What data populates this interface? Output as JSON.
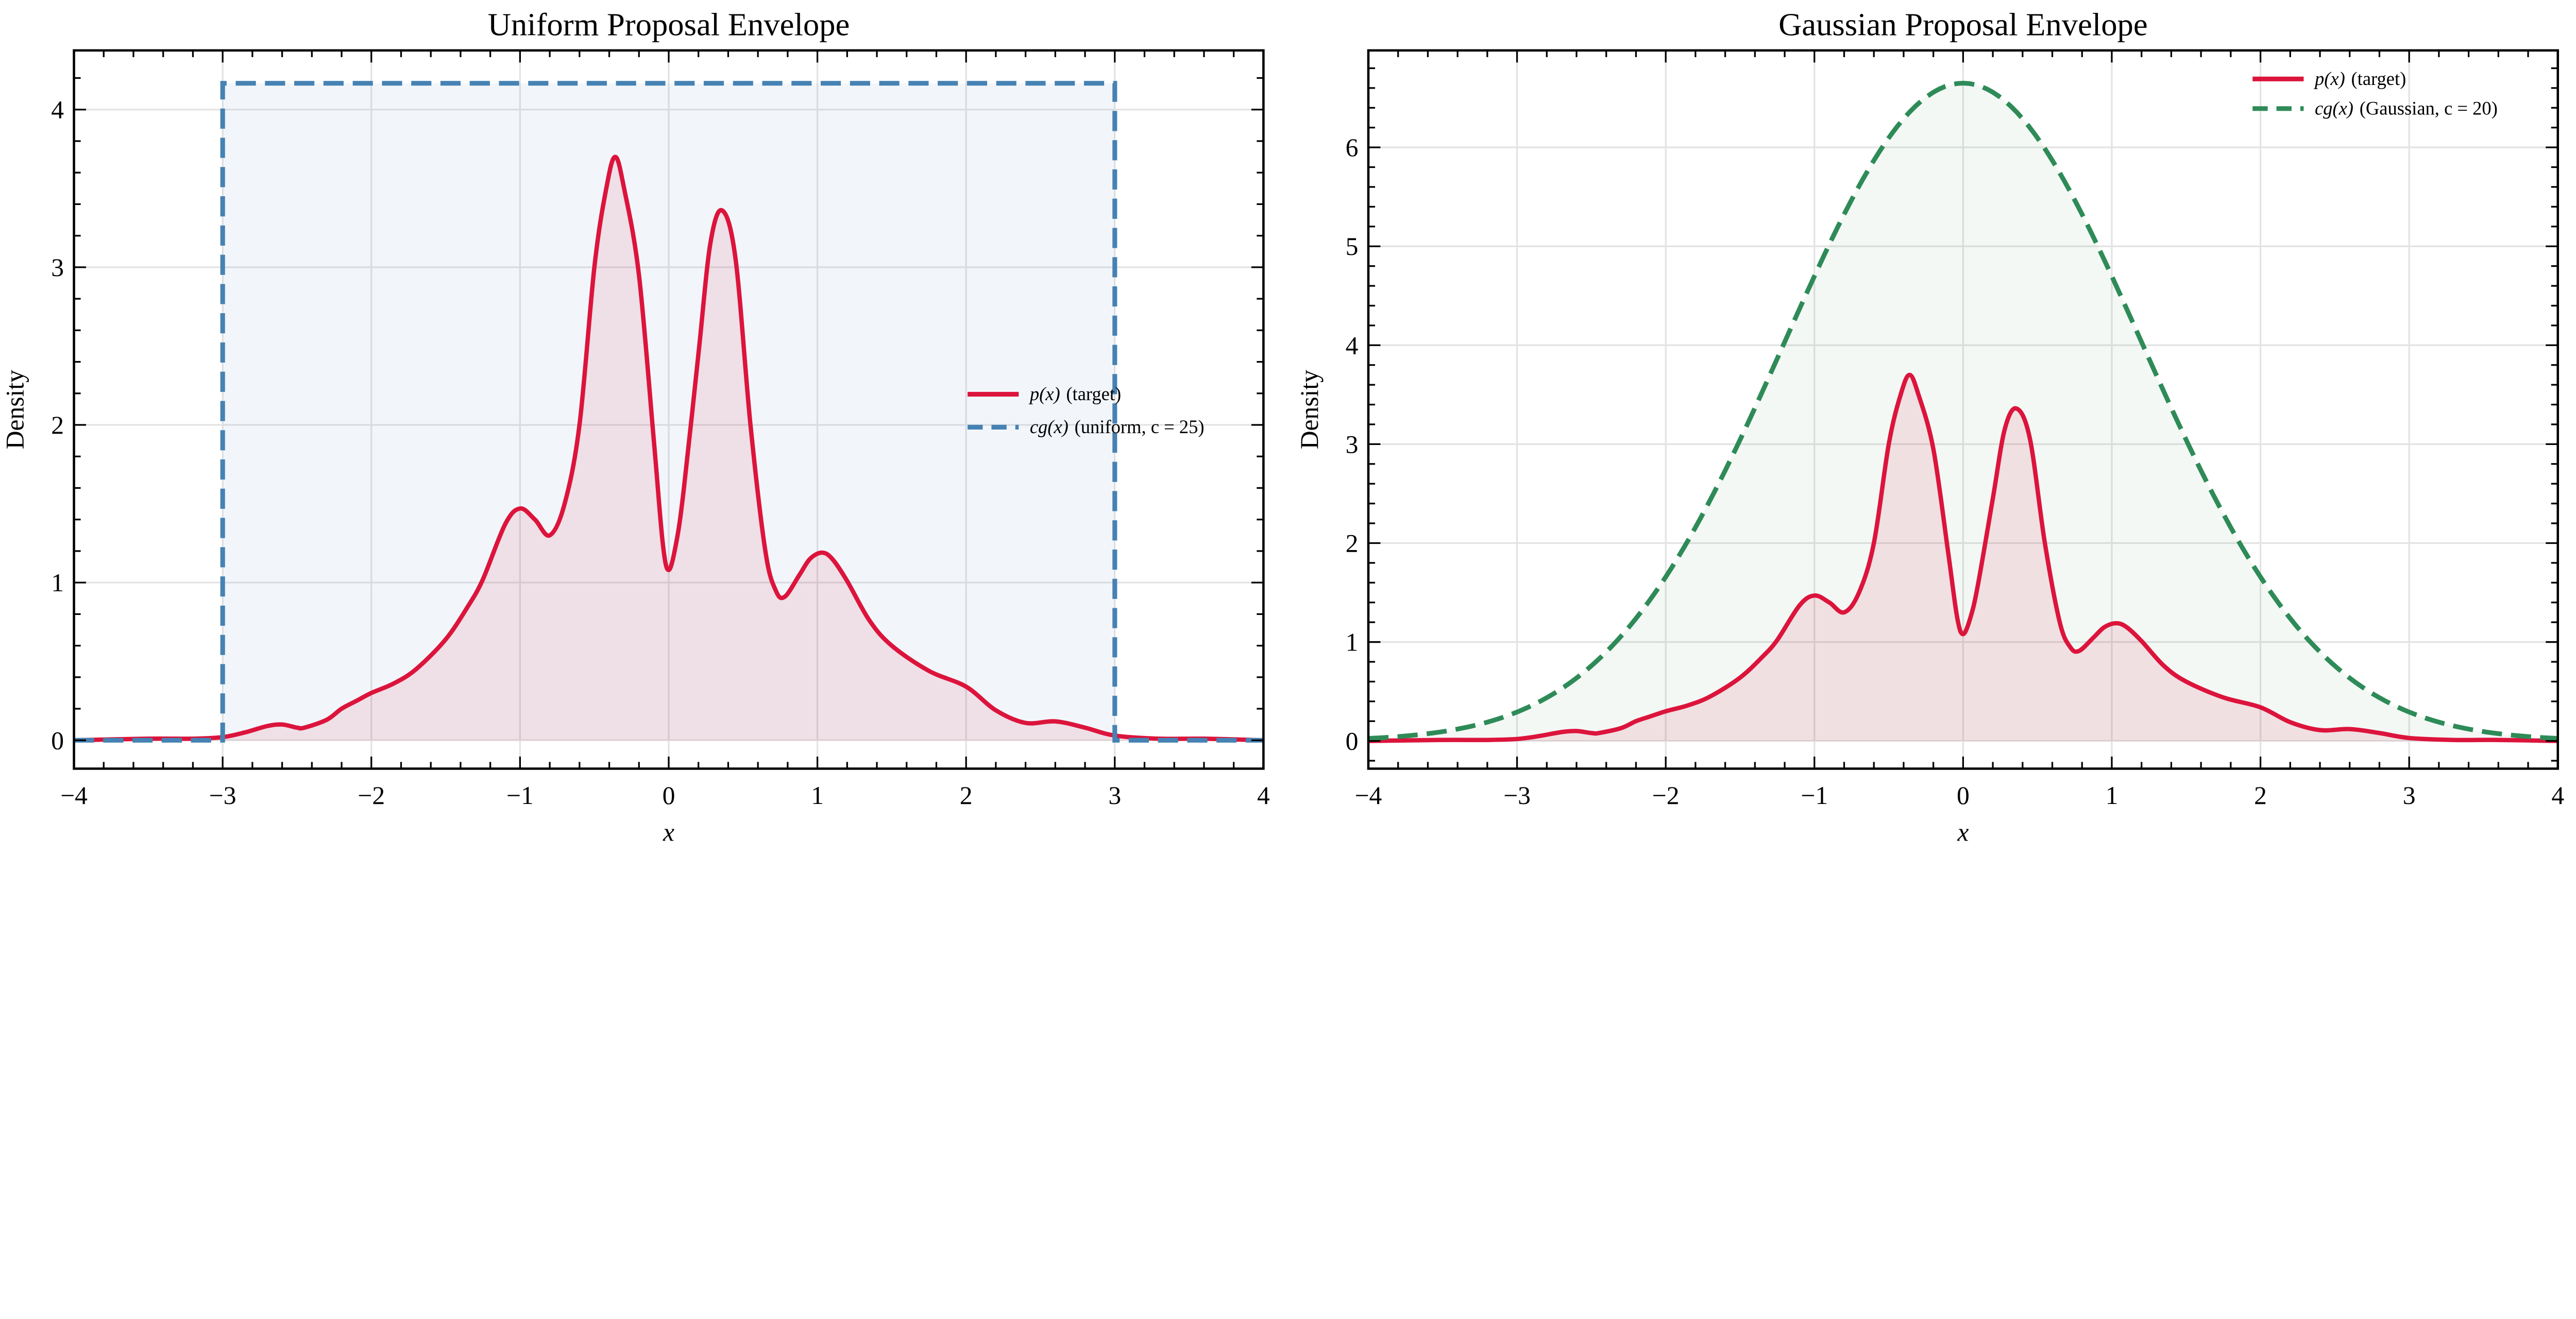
{
  "chart_data": [
    {
      "type": "line",
      "title": "Uniform Proposal Envelope",
      "xlabel": "x",
      "ylabel": "Density",
      "xlim": [
        -4,
        4
      ],
      "ylim": [
        -0.18,
        4.375
      ],
      "grid": true,
      "legend_position": "center-right",
      "xticks": [
        -4,
        -3,
        -2,
        -1,
        0,
        1,
        2,
        3,
        4
      ],
      "xtick_labels": [
        "−4",
        "−3",
        "−2",
        "−1",
        "0",
        "1",
        "2",
        "3",
        "4"
      ],
      "yticks": [
        0,
        1,
        2,
        3,
        4
      ],
      "ytick_labels": [
        "0",
        "1",
        "2",
        "3",
        "4"
      ],
      "target": {
        "name": "p(x) (target)",
        "color": "#DC143C",
        "points": [
          [
            -4,
            0.0
          ],
          [
            -3.5,
            0.01
          ],
          [
            -3.2,
            0.01
          ],
          [
            -3.0,
            0.02
          ],
          [
            -2.85,
            0.05
          ],
          [
            -2.7,
            0.09
          ],
          [
            -2.6,
            0.1
          ],
          [
            -2.5,
            0.08
          ],
          [
            -2.45,
            0.08
          ],
          [
            -2.3,
            0.13
          ],
          [
            -2.2,
            0.2
          ],
          [
            -2.1,
            0.25
          ],
          [
            -2.0,
            0.3
          ],
          [
            -1.85,
            0.36
          ],
          [
            -1.7,
            0.45
          ],
          [
            -1.5,
            0.64
          ],
          [
            -1.35,
            0.85
          ],
          [
            -1.25,
            1.02
          ],
          [
            -1.1,
            1.37
          ],
          [
            -1.0,
            1.47
          ],
          [
            -0.9,
            1.4
          ],
          [
            -0.8,
            1.3
          ],
          [
            -0.7,
            1.5
          ],
          [
            -0.6,
            2.0
          ],
          [
            -0.5,
            3.0
          ],
          [
            -0.42,
            3.5
          ],
          [
            -0.36,
            3.7
          ],
          [
            -0.3,
            3.5
          ],
          [
            -0.2,
            2.95
          ],
          [
            -0.1,
            1.9
          ],
          [
            -0.04,
            1.25
          ],
          [
            0,
            1.08
          ],
          [
            0.05,
            1.25
          ],
          [
            0.1,
            1.58
          ],
          [
            0.2,
            2.45
          ],
          [
            0.28,
            3.15
          ],
          [
            0.36,
            3.36
          ],
          [
            0.45,
            3.05
          ],
          [
            0.55,
            2.0
          ],
          [
            0.65,
            1.2
          ],
          [
            0.72,
            0.95
          ],
          [
            0.78,
            0.91
          ],
          [
            0.88,
            1.05
          ],
          [
            0.95,
            1.15
          ],
          [
            1.03,
            1.19
          ],
          [
            1.1,
            1.15
          ],
          [
            1.2,
            1.01
          ],
          [
            1.35,
            0.76
          ],
          [
            1.5,
            0.6
          ],
          [
            1.75,
            0.44
          ],
          [
            2.0,
            0.34
          ],
          [
            2.2,
            0.19
          ],
          [
            2.4,
            0.11
          ],
          [
            2.6,
            0.12
          ],
          [
            2.8,
            0.08
          ],
          [
            3.0,
            0.03
          ],
          [
            3.3,
            0.01
          ],
          [
            3.6,
            0.01
          ],
          [
            4,
            0.0
          ]
        ]
      },
      "envelope": {
        "kind": "uniform",
        "c": 25,
        "low": -3,
        "high": 3,
        "color": "#4682B4"
      },
      "legend": [
        {
          "math": "p(x)",
          "text": "(target)",
          "color": "#DC143C",
          "dashed": false
        },
        {
          "math": "cg(x)",
          "text": "(uniform, c = 25)",
          "color": "#4682B4",
          "dashed": true
        }
      ]
    },
    {
      "type": "line",
      "title": "Gaussian Proposal Envelope",
      "xlabel": "x",
      "ylabel": "Density",
      "xlim": [
        -4,
        4
      ],
      "ylim": [
        -0.28,
        6.98
      ],
      "grid": true,
      "legend_position": "top-right",
      "xticks": [
        -4,
        -3,
        -2,
        -1,
        0,
        1,
        2,
        3,
        4
      ],
      "xtick_labels": [
        "−4",
        "−3",
        "−2",
        "−1",
        "0",
        "1",
        "2",
        "3",
        "4"
      ],
      "yticks": [
        0,
        1,
        2,
        3,
        4,
        5,
        6
      ],
      "ytick_labels": [
        "0",
        "1",
        "2",
        "3",
        "4",
        "5",
        "6"
      ],
      "target": {
        "name": "p(x) (target)",
        "color": "#DC143C",
        "points": [
          [
            -4,
            0.0
          ],
          [
            -3.5,
            0.01
          ],
          [
            -3.2,
            0.01
          ],
          [
            -3.0,
            0.02
          ],
          [
            -2.85,
            0.05
          ],
          [
            -2.7,
            0.09
          ],
          [
            -2.6,
            0.1
          ],
          [
            -2.5,
            0.08
          ],
          [
            -2.45,
            0.08
          ],
          [
            -2.3,
            0.13
          ],
          [
            -2.2,
            0.2
          ],
          [
            -2.1,
            0.25
          ],
          [
            -2.0,
            0.3
          ],
          [
            -1.85,
            0.36
          ],
          [
            -1.7,
            0.45
          ],
          [
            -1.5,
            0.64
          ],
          [
            -1.35,
            0.85
          ],
          [
            -1.25,
            1.02
          ],
          [
            -1.1,
            1.37
          ],
          [
            -1.0,
            1.47
          ],
          [
            -0.9,
            1.4
          ],
          [
            -0.8,
            1.3
          ],
          [
            -0.7,
            1.5
          ],
          [
            -0.6,
            2.0
          ],
          [
            -0.5,
            3.0
          ],
          [
            -0.42,
            3.5
          ],
          [
            -0.36,
            3.7
          ],
          [
            -0.3,
            3.5
          ],
          [
            -0.2,
            2.95
          ],
          [
            -0.1,
            1.9
          ],
          [
            -0.04,
            1.25
          ],
          [
            0,
            1.08
          ],
          [
            0.05,
            1.25
          ],
          [
            0.1,
            1.58
          ],
          [
            0.2,
            2.45
          ],
          [
            0.28,
            3.15
          ],
          [
            0.36,
            3.36
          ],
          [
            0.45,
            3.05
          ],
          [
            0.55,
            2.0
          ],
          [
            0.65,
            1.2
          ],
          [
            0.72,
            0.95
          ],
          [
            0.78,
            0.91
          ],
          [
            0.88,
            1.05
          ],
          [
            0.95,
            1.15
          ],
          [
            1.03,
            1.19
          ],
          [
            1.1,
            1.15
          ],
          [
            1.2,
            1.01
          ],
          [
            1.35,
            0.76
          ],
          [
            1.5,
            0.6
          ],
          [
            1.75,
            0.44
          ],
          [
            2.0,
            0.34
          ],
          [
            2.2,
            0.19
          ],
          [
            2.4,
            0.11
          ],
          [
            2.6,
            0.12
          ],
          [
            2.8,
            0.08
          ],
          [
            3.0,
            0.03
          ],
          [
            3.3,
            0.01
          ],
          [
            3.6,
            0.01
          ],
          [
            4,
            0.0
          ]
        ]
      },
      "envelope": {
        "kind": "gaussian",
        "c": 20,
        "mu": 0,
        "sigma": 1.2,
        "color": "#2E8B57"
      },
      "legend": [
        {
          "math": "p(x)",
          "text": "(target)",
          "color": "#DC143C",
          "dashed": false
        },
        {
          "math": "cg(x)",
          "text": "(Gaussian, c = 20)",
          "color": "#2E8B57",
          "dashed": true
        }
      ]
    }
  ]
}
